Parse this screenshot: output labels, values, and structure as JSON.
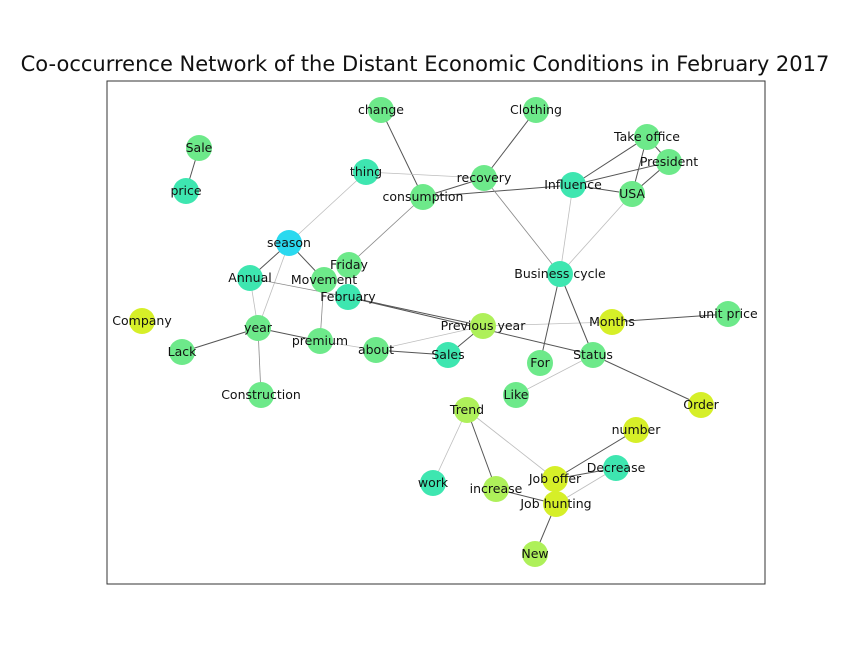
{
  "title": "Co-occurrence Network of the Distant Economic Conditions in February 2017",
  "colors": {
    "edge": "#555555",
    "edge_light": "#bdbdbd",
    "frame": "#333333",
    "cyan": "#2ad9ef",
    "teal": "#3ee6b0",
    "green": "#6de98a",
    "lime": "#aef05a",
    "yellow": "#d6ef28"
  },
  "nodes": [
    {
      "id": "change",
      "label": "change",
      "color": "green"
    },
    {
      "id": "clothing",
      "label": "Clothing",
      "color": "green"
    },
    {
      "id": "sale",
      "label": "Sale",
      "color": "green"
    },
    {
      "id": "take_office",
      "label": "Take office",
      "color": "green"
    },
    {
      "id": "president",
      "label": "President",
      "color": "green"
    },
    {
      "id": "thing",
      "label": "thing",
      "color": "teal"
    },
    {
      "id": "recovery",
      "label": "recovery",
      "color": "green"
    },
    {
      "id": "influence",
      "label": "Influence",
      "color": "teal"
    },
    {
      "id": "consumption",
      "label": "consumption",
      "color": "green"
    },
    {
      "id": "price",
      "label": "price",
      "color": "teal"
    },
    {
      "id": "usa",
      "label": "USA",
      "color": "green"
    },
    {
      "id": "season",
      "label": "season",
      "color": "cyan"
    },
    {
      "id": "friday",
      "label": "Friday",
      "color": "green"
    },
    {
      "id": "annual",
      "label": "Annual",
      "color": "teal"
    },
    {
      "id": "movement",
      "label": "Movement",
      "color": "green"
    },
    {
      "id": "business_cycle",
      "label": "Business cycle",
      "color": "teal"
    },
    {
      "id": "february",
      "label": "February",
      "color": "teal"
    },
    {
      "id": "company",
      "label": "Company",
      "color": "yellow"
    },
    {
      "id": "year",
      "label": "year",
      "color": "green"
    },
    {
      "id": "previous_year",
      "label": "Previous year",
      "color": "lime"
    },
    {
      "id": "months",
      "label": "Months",
      "color": "yellow"
    },
    {
      "id": "unit_price",
      "label": "unit price",
      "color": "green"
    },
    {
      "id": "premium",
      "label": "premium",
      "color": "green"
    },
    {
      "id": "about",
      "label": "about",
      "color": "green"
    },
    {
      "id": "lack",
      "label": "Lack",
      "color": "green"
    },
    {
      "id": "sales",
      "label": "Sales",
      "color": "teal"
    },
    {
      "id": "status",
      "label": "Status",
      "color": "green"
    },
    {
      "id": "for",
      "label": "For",
      "color": "green"
    },
    {
      "id": "construction",
      "label": "Construction",
      "color": "green"
    },
    {
      "id": "like",
      "label": "Like",
      "color": "green"
    },
    {
      "id": "order",
      "label": "Order",
      "color": "yellow"
    },
    {
      "id": "trend",
      "label": "Trend",
      "color": "lime"
    },
    {
      "id": "number",
      "label": "number",
      "color": "yellow"
    },
    {
      "id": "decrease",
      "label": "Decrease",
      "color": "teal"
    },
    {
      "id": "job_offer",
      "label": "Job offer",
      "color": "yellow"
    },
    {
      "id": "work",
      "label": "work",
      "color": "teal"
    },
    {
      "id": "increase",
      "label": "increase",
      "color": "lime"
    },
    {
      "id": "job_hunting",
      "label": "Job hunting",
      "color": "yellow"
    },
    {
      "id": "new",
      "label": "New",
      "color": "lime"
    }
  ],
  "edges": [
    {
      "source": "sale",
      "target": "price",
      "weight": "strong"
    },
    {
      "source": "change",
      "target": "consumption",
      "weight": "strong"
    },
    {
      "source": "clothing",
      "target": "recovery",
      "weight": "strong"
    },
    {
      "source": "thing",
      "target": "recovery",
      "weight": "light"
    },
    {
      "source": "recovery",
      "target": "consumption",
      "weight": "strong"
    },
    {
      "source": "consumption",
      "target": "influence",
      "weight": "strong"
    },
    {
      "source": "recovery",
      "target": "business_cycle",
      "weight": "medium"
    },
    {
      "source": "influence",
      "target": "take_office",
      "weight": "strong"
    },
    {
      "source": "influence",
      "target": "president",
      "weight": "strong"
    },
    {
      "source": "influence",
      "target": "usa",
      "weight": "strong"
    },
    {
      "source": "take_office",
      "target": "president",
      "weight": "strong"
    },
    {
      "source": "take_office",
      "target": "usa",
      "weight": "strong"
    },
    {
      "source": "president",
      "target": "usa",
      "weight": "strong"
    },
    {
      "source": "influence",
      "target": "business_cycle",
      "weight": "light"
    },
    {
      "source": "usa",
      "target": "business_cycle",
      "weight": "light"
    },
    {
      "source": "consumption",
      "target": "friday",
      "weight": "medium"
    },
    {
      "source": "thing",
      "target": "season",
      "weight": "light"
    },
    {
      "source": "season",
      "target": "annual",
      "weight": "strong"
    },
    {
      "source": "season",
      "target": "movement",
      "weight": "strong"
    },
    {
      "source": "season",
      "target": "year",
      "weight": "light"
    },
    {
      "source": "annual",
      "target": "year",
      "weight": "light"
    },
    {
      "source": "annual",
      "target": "february",
      "weight": "medium"
    },
    {
      "source": "movement",
      "target": "premium",
      "weight": "medium"
    },
    {
      "source": "february",
      "target": "previous_year",
      "weight": "strong"
    },
    {
      "source": "february",
      "target": "status",
      "weight": "strong"
    },
    {
      "source": "year",
      "target": "lack",
      "weight": "strong"
    },
    {
      "source": "year",
      "target": "construction",
      "weight": "medium"
    },
    {
      "source": "year",
      "target": "premium",
      "weight": "strong"
    },
    {
      "source": "premium",
      "target": "about",
      "weight": "light"
    },
    {
      "source": "about",
      "target": "sales",
      "weight": "strong"
    },
    {
      "source": "sales",
      "target": "previous_year",
      "weight": "strong"
    },
    {
      "source": "about",
      "target": "previous_year",
      "weight": "light"
    },
    {
      "source": "previous_year",
      "target": "months",
      "weight": "light"
    },
    {
      "source": "months",
      "target": "unit_price",
      "weight": "strong"
    },
    {
      "source": "business_cycle",
      "target": "for",
      "weight": "strong"
    },
    {
      "source": "business_cycle",
      "target": "status",
      "weight": "strong"
    },
    {
      "source": "status",
      "target": "order",
      "weight": "strong"
    },
    {
      "source": "status",
      "target": "like",
      "weight": "light"
    },
    {
      "source": "trend",
      "target": "increase",
      "weight": "strong"
    },
    {
      "source": "trend",
      "target": "job_offer",
      "weight": "light"
    },
    {
      "source": "trend",
      "target": "work",
      "weight": "light"
    },
    {
      "source": "increase",
      "target": "job_hunting",
      "weight": "strong"
    },
    {
      "source": "job_offer",
      "target": "job_hunting",
      "weight": "strong"
    },
    {
      "source": "job_offer",
      "target": "number",
      "weight": "strong"
    },
    {
      "source": "job_offer",
      "target": "decrease",
      "weight": "strong"
    },
    {
      "source": "job_hunting",
      "target": "new",
      "weight": "strong"
    },
    {
      "source": "job_hunting",
      "target": "decrease",
      "weight": "light"
    }
  ]
}
